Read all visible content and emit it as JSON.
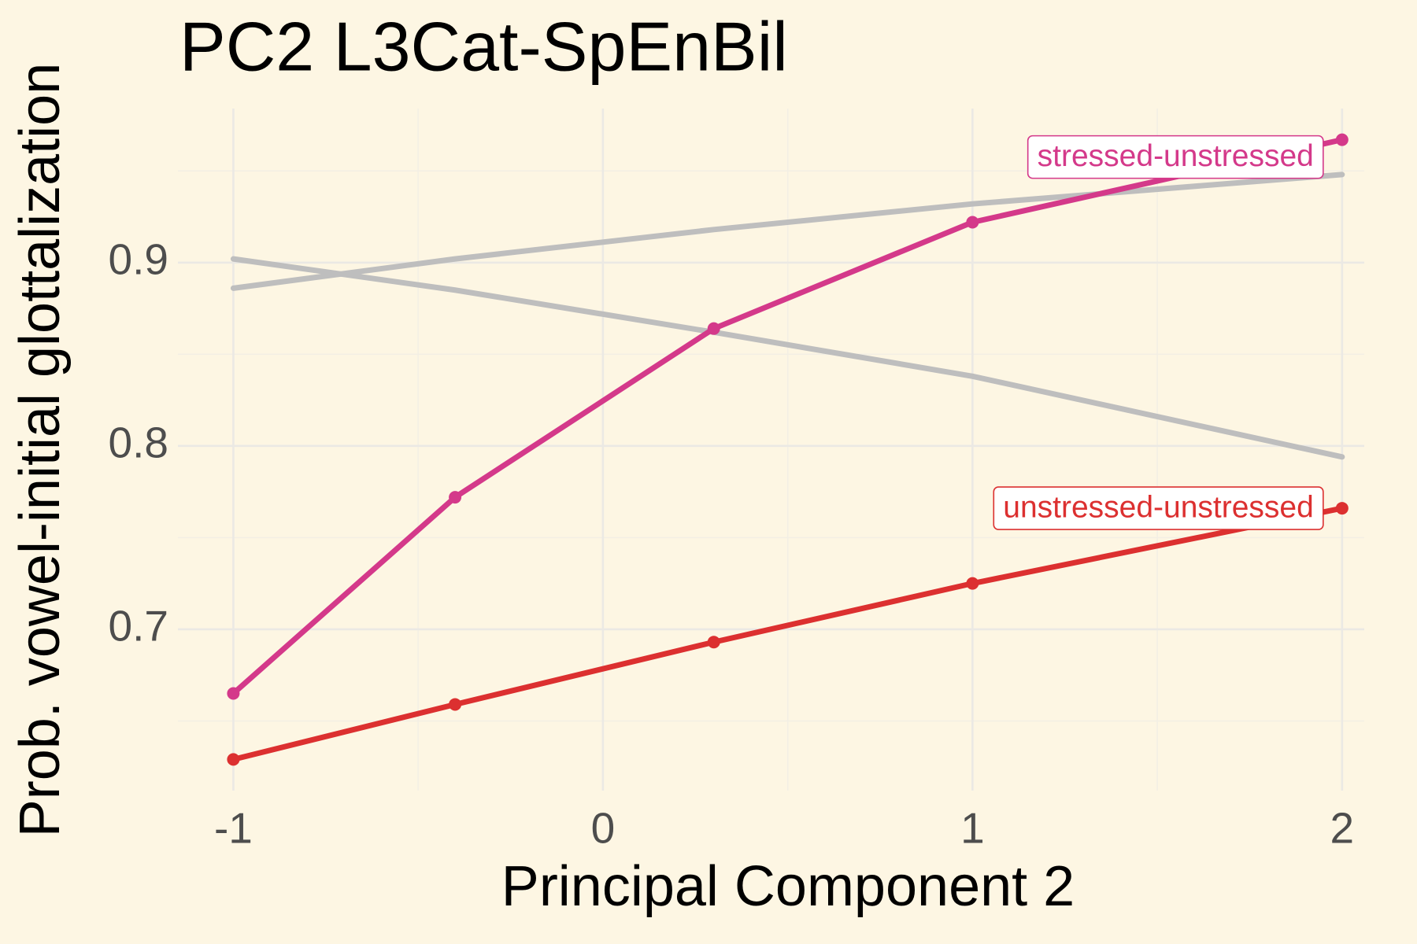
{
  "chart_data": {
    "type": "line",
    "title": "PC2 L3Cat-SpEnBil",
    "x_label": "Principal Component 2",
    "y_label": "Prob. vowel-initial glottalization",
    "x": [
      -1,
      -0.4,
      0.3,
      1,
      2
    ],
    "series": [
      {
        "color": "#bebebe",
        "values": [
          0.886,
          0.902,
          0.918,
          0.932,
          0.948
        ],
        "points": false
      },
      {
        "color": "#bebebe",
        "values": [
          0.902,
          0.885,
          0.862,
          0.838,
          0.794
        ],
        "points": false
      },
      {
        "name": "stressed-unstressed",
        "color": "#d4398a",
        "values": [
          0.665,
          0.772,
          0.864,
          0.922,
          0.967
        ],
        "points": true
      },
      {
        "name": "unstressed-unstressed",
        "color": "#dc3030",
        "values": [
          0.629,
          0.659,
          0.693,
          0.725,
          0.766
        ],
        "points": true
      }
    ],
    "xlim": [
      -1.15,
      2.06
    ],
    "ylim": [
      0.612,
      0.984
    ],
    "xticks": [
      -1,
      0,
      1,
      2
    ],
    "yticks": [
      0.7,
      0.8,
      0.9
    ],
    "x_minor_ticks": [
      -0.5,
      0.5,
      1.5
    ],
    "y_minor_ticks": [
      0.65,
      0.75,
      0.85,
      0.95
    ],
    "grid": true,
    "background": "#fdf6e3"
  }
}
